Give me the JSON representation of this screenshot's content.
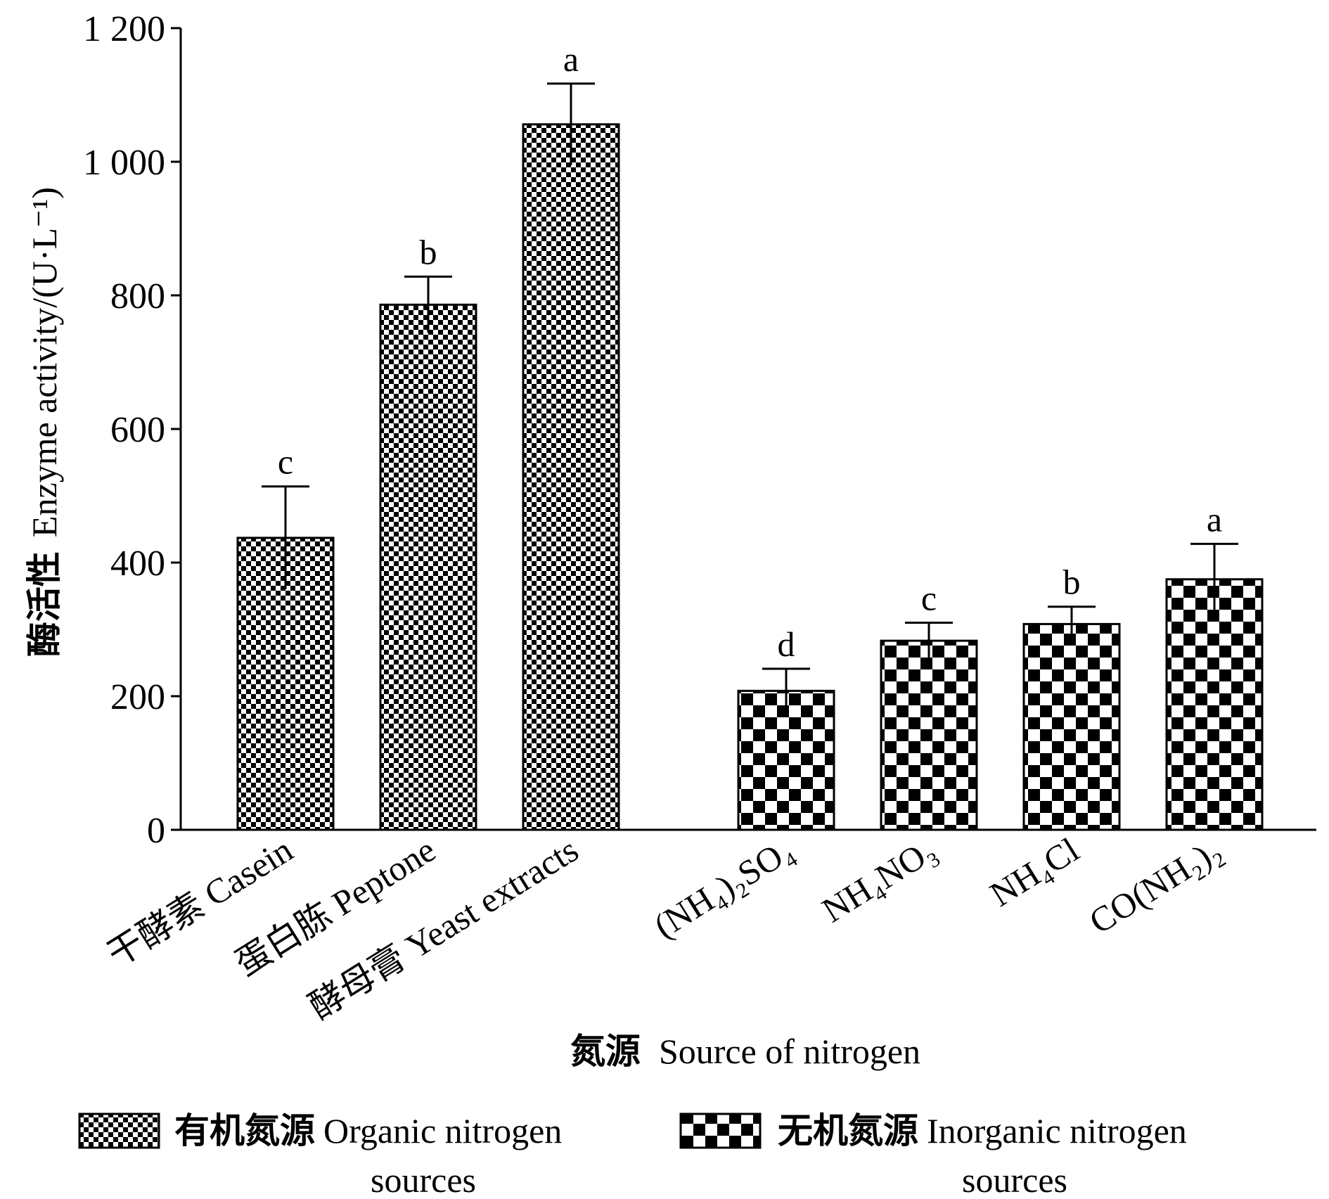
{
  "chart_data": {
    "type": "bar",
    "ylabel": "酶活性  Enzyme activity/(U·L⁻¹)",
    "ylabel_cn": "酶活性",
    "ylabel_en": "Enzyme activity/(U·L⁻¹)",
    "xlabel_cn": "氮源",
    "xlabel_en": "Source of nitrogen",
    "ylim": [
      0,
      1200
    ],
    "yticks": [
      0,
      200,
      400,
      600,
      800,
      1000,
      1200
    ],
    "ytick_labels": [
      "0",
      "200",
      "400",
      "600",
      "800",
      "1 000",
      "1 200"
    ],
    "grid": false,
    "legend_position": "bottom",
    "categories": [
      {
        "label": "干酵素 Casein",
        "value": 437,
        "error": 77,
        "sig": "c",
        "group": "organic"
      },
      {
        "label": "蛋白胨 Peptone",
        "value": 786,
        "error": 42,
        "sig": "b",
        "group": "organic"
      },
      {
        "label": "酵母膏 Yeast extracts",
        "value": 1056,
        "error": 61,
        "sig": "a",
        "group": "organic"
      },
      {
        "label": "(NH₄)₂SO₄",
        "value": 208,
        "error": 33,
        "sig": "d",
        "group": "inorganic"
      },
      {
        "label": "NH₄NO₃",
        "value": 283,
        "error": 27,
        "sig": "c",
        "group": "inorganic"
      },
      {
        "label": "NH₄Cl",
        "value": 308,
        "error": 26,
        "sig": "b",
        "group": "inorganic"
      },
      {
        "label": "CO(NH₂)₂",
        "value": 375,
        "error": 53,
        "sig": "a",
        "group": "inorganic"
      }
    ],
    "series": [
      {
        "name": "有机氮源 Organic nitrogen sources",
        "pattern": "fine-checker",
        "name_cn": "有机氮源",
        "name_en_line1": "Organic nitrogen",
        "name_en_line2": "sources"
      },
      {
        "name": "无机氮源 Inorganic nitrogen sources",
        "pattern": "coarse-checker",
        "name_cn": "无机氮源",
        "name_en_line1": "Inorganic nitrogen",
        "name_en_line2": "sources"
      }
    ],
    "colors": {
      "ink": "#000000",
      "background": "#ffffff"
    }
  }
}
